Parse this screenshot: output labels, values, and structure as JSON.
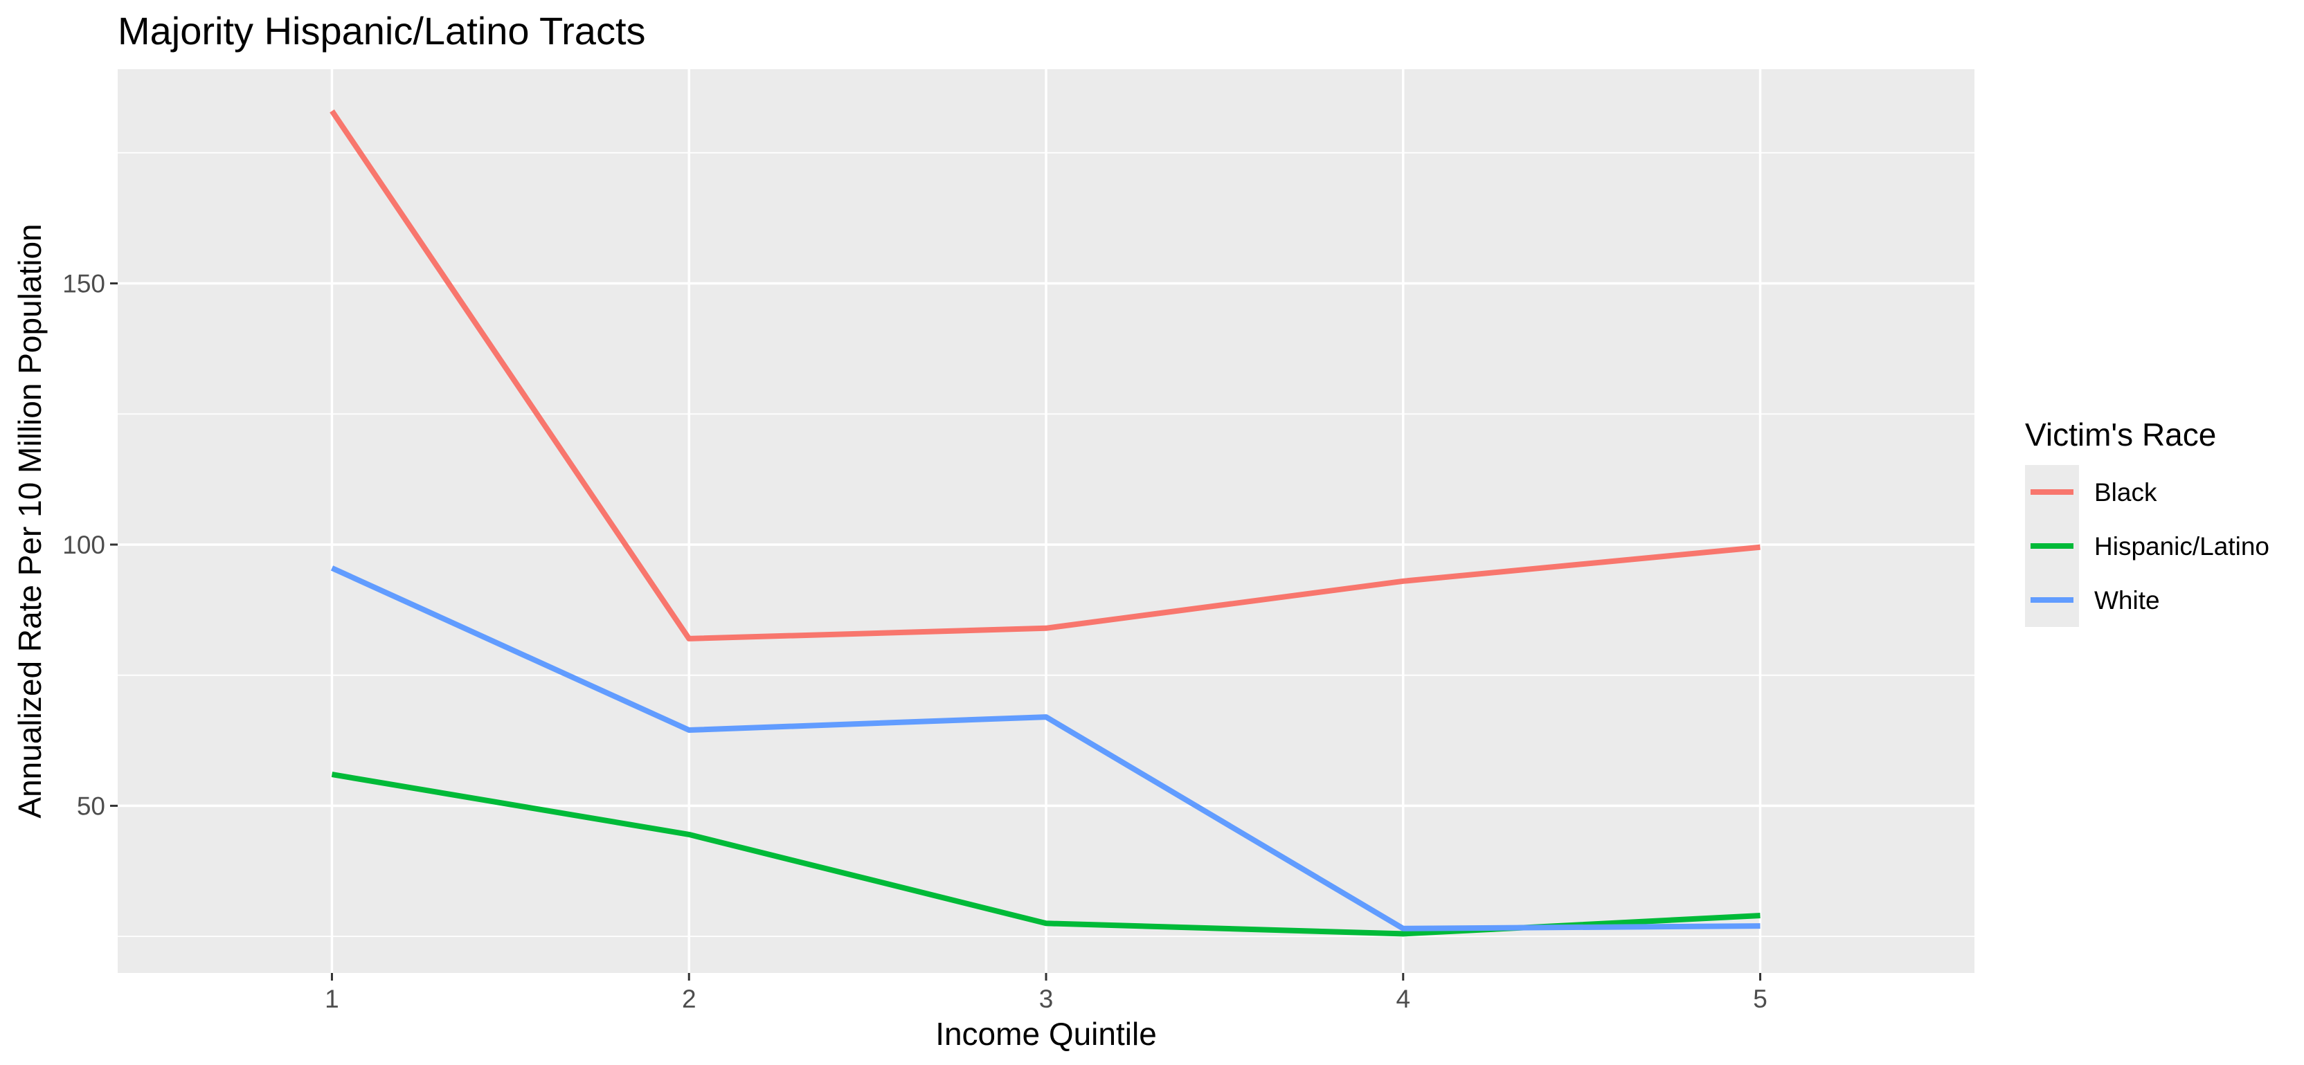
{
  "chart_data": {
    "type": "line",
    "title": "Majority Hispanic/Latino Tracts",
    "xlabel": "Income Quintile",
    "ylabel": "Annualized Rate Per 10 Million Population",
    "x": [
      1,
      2,
      3,
      4,
      5
    ],
    "x_ticks": [
      "1",
      "2",
      "3",
      "4",
      "5"
    ],
    "xlim": [
      0.4,
      5.6
    ],
    "y_ticks": [
      50,
      100,
      150
    ],
    "y_tick_labels": [
      "50",
      "100",
      "150"
    ],
    "ylim": [
      18,
      191
    ],
    "grid": true,
    "legend": {
      "title": "Victim's Race",
      "position": "right"
    },
    "series": [
      {
        "name": "Black",
        "color": "#F8766D",
        "values": [
          183,
          82,
          84,
          93,
          99.5
        ]
      },
      {
        "name": "Hispanic/Latino",
        "color": "#00BA38",
        "values": [
          56,
          44.5,
          27.5,
          25.5,
          29
        ]
      },
      {
        "name": "White",
        "color": "#619CFF",
        "values": [
          95.5,
          64.5,
          67,
          26.5,
          27
        ]
      }
    ]
  }
}
